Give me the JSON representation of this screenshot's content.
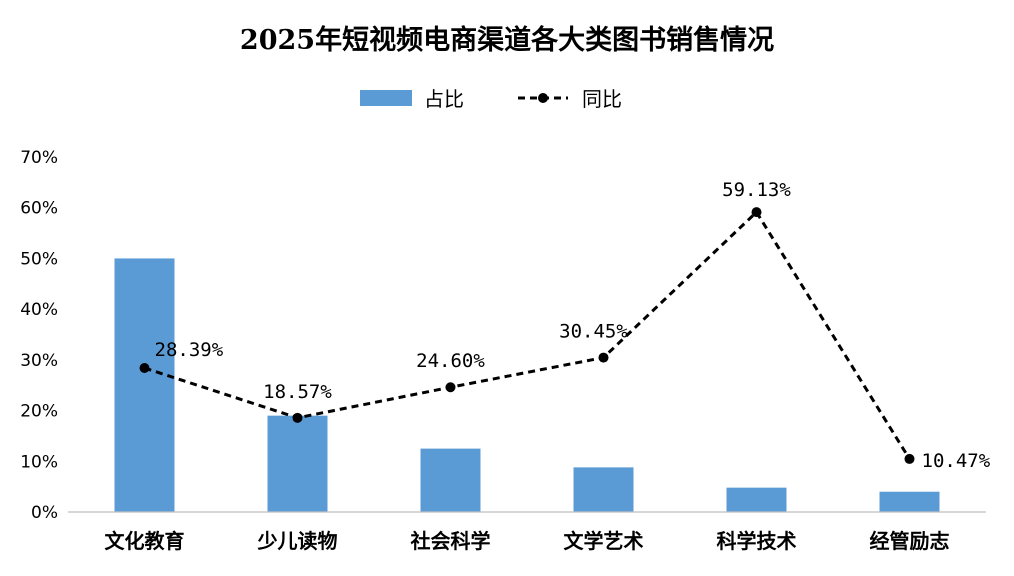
{
  "chart_data": {
    "type": "bar",
    "title": "2025年短视频电商渠道各大类图书销售情况",
    "xlabel": "",
    "ylabel": "",
    "categories": [
      "文化教育",
      "少儿读物",
      "社会科学",
      "文学艺术",
      "科学技术",
      "经管励志"
    ],
    "ylim": [
      0,
      70
    ],
    "ytick_values": [
      0,
      10,
      20,
      30,
      40,
      50,
      60,
      70
    ],
    "ytick_labels": [
      "0%",
      "10%",
      "20%",
      "30%",
      "40%",
      "50%",
      "60%",
      "70%"
    ],
    "legend_position": "top",
    "grid": false,
    "series": [
      {
        "name": "占比",
        "kind": "bar",
        "color": "#5b9bd5",
        "values": [
          50.0,
          19.0,
          12.5,
          8.8,
          4.8,
          4.0
        ]
      },
      {
        "name": "同比",
        "kind": "line",
        "style": "dashed",
        "color": "#000000",
        "values": [
          28.39,
          18.57,
          24.6,
          30.45,
          59.13,
          10.47
        ],
        "labels": [
          "28.39%",
          "18.57%",
          "24.60%",
          "30.45%",
          "59.13%",
          "10.47%"
        ]
      }
    ]
  }
}
